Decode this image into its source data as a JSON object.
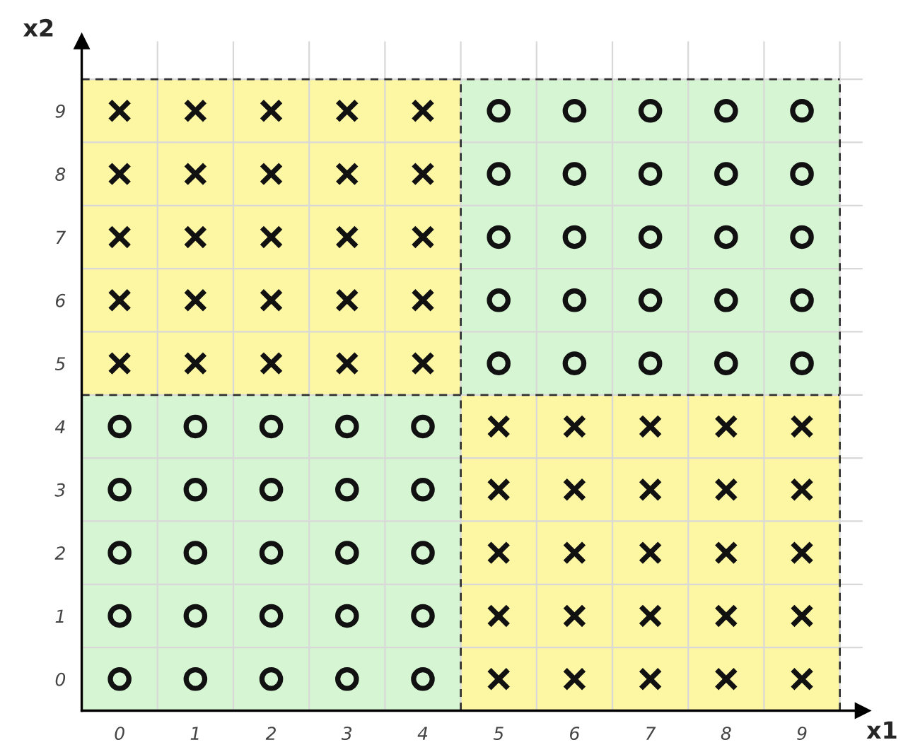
{
  "chart_data": {
    "type": "scatter",
    "xlabel": "x1",
    "ylabel": "x2",
    "xlim": [
      -0.5,
      9.8
    ],
    "xticks": [
      0,
      1,
      2,
      3,
      4,
      5,
      6,
      7,
      8,
      9
    ],
    "ylim": [
      -0.5,
      10.1
    ],
    "yticks": [
      0,
      1,
      2,
      3,
      4,
      5,
      6,
      7,
      8,
      9
    ],
    "series": [
      {
        "marker": "cross",
        "color": "#111111",
        "x": [
          0,
          1,
          2,
          3,
          4,
          0,
          1,
          2,
          3,
          4,
          0,
          1,
          2,
          3,
          4,
          0,
          1,
          2,
          3,
          4,
          0,
          1,
          2,
          3,
          4,
          5,
          6,
          7,
          8,
          9,
          5,
          6,
          7,
          8,
          9,
          5,
          6,
          7,
          8,
          9,
          5,
          6,
          7,
          8,
          9,
          5,
          6,
          7,
          8,
          9
        ],
        "values": [
          5,
          5,
          5,
          5,
          5,
          6,
          6,
          6,
          6,
          6,
          7,
          7,
          7,
          7,
          7,
          8,
          8,
          8,
          8,
          8,
          9,
          9,
          9,
          9,
          9,
          0,
          0,
          0,
          0,
          0,
          1,
          1,
          1,
          1,
          1,
          2,
          2,
          2,
          2,
          2,
          3,
          3,
          3,
          3,
          3,
          4,
          4,
          4,
          4,
          4
        ]
      },
      {
        "marker": "circle",
        "color": "#111111",
        "x": [
          5,
          6,
          7,
          8,
          9,
          5,
          6,
          7,
          8,
          9,
          5,
          6,
          7,
          8,
          9,
          5,
          6,
          7,
          8,
          9,
          5,
          6,
          7,
          8,
          9,
          0,
          1,
          2,
          3,
          4,
          0,
          1,
          2,
          3,
          4,
          0,
          1,
          2,
          3,
          4,
          0,
          1,
          2,
          3,
          4,
          0,
          1,
          2,
          3,
          4
        ],
        "values": [
          5,
          5,
          5,
          5,
          5,
          6,
          6,
          6,
          6,
          6,
          7,
          7,
          7,
          7,
          7,
          8,
          8,
          8,
          8,
          8,
          9,
          9,
          9,
          9,
          9,
          0,
          0,
          0,
          0,
          0,
          1,
          1,
          1,
          1,
          1,
          2,
          2,
          2,
          2,
          2,
          3,
          3,
          3,
          3,
          3,
          4,
          4,
          4,
          4,
          4
        ]
      }
    ],
    "grid": true
  }
}
